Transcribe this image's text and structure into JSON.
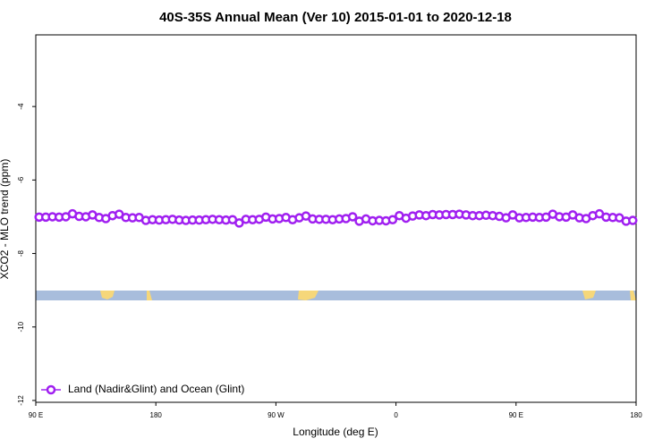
{
  "chart_data": {
    "type": "line",
    "title": "40S-35S Annual Mean (Ver 10)   2015-01-01 to 2020-12-18",
    "x_label": "Longitude (deg E)",
    "y_label": "XCO2 - MLO trend (ppm)",
    "x": [
      92.5,
      97.5,
      102.5,
      107.5,
      112.5,
      117.5,
      122.5,
      127.5,
      132.5,
      137.5,
      142.5,
      147.5,
      152.5,
      157.5,
      162.5,
      167.5,
      172.5,
      177.5,
      182.5,
      187.5,
      192.5,
      197.5,
      202.5,
      207.5,
      212.5,
      217.5,
      222.5,
      227.5,
      232.5,
      237.5,
      242.5,
      247.5,
      252.5,
      257.5,
      262.5,
      267.5,
      272.5,
      277.5,
      282.5,
      287.5,
      292.5,
      297.5,
      302.5,
      307.5,
      312.5,
      317.5,
      322.5,
      327.5,
      332.5,
      337.5,
      342.5,
      347.5,
      352.5,
      357.5,
      362.5,
      367.5,
      372.5,
      377.5,
      382.5,
      387.5,
      392.5,
      397.5,
      402.5,
      407.5,
      412.5,
      417.5,
      422.5,
      427.5,
      432.5,
      437.5,
      442.5,
      447.5,
      452.5,
      457.5,
      462.5,
      467.5,
      472.5,
      477.5,
      482.5,
      487.5,
      492.5,
      497.5,
      502.5,
      507.5,
      512.5,
      517.5,
      522.5,
      527.5,
      532.5,
      537.5
    ],
    "series": [
      {
        "name": "Land (Nadir&Glint) and Ocean (Glint)",
        "color": "#a020f0",
        "values": [
          -7.01,
          -7.01,
          -7.0,
          -7.01,
          -7.0,
          -6.92,
          -6.99,
          -7.0,
          -6.95,
          -7.02,
          -7.05,
          -6.97,
          -6.93,
          -7.02,
          -7.03,
          -7.02,
          -7.1,
          -7.08,
          -7.09,
          -7.08,
          -7.07,
          -7.09,
          -7.1,
          -7.09,
          -7.09,
          -7.08,
          -7.07,
          -7.08,
          -7.09,
          -7.08,
          -7.17,
          -7.07,
          -7.08,
          -7.07,
          -7.01,
          -7.06,
          -7.05,
          -7.02,
          -7.08,
          -7.03,
          -6.98,
          -7.06,
          -7.07,
          -7.07,
          -7.08,
          -7.06,
          -7.05,
          -7.0,
          -7.12,
          -7.06,
          -7.11,
          -7.1,
          -7.11,
          -7.08,
          -6.97,
          -7.04,
          -6.98,
          -6.95,
          -6.97,
          -6.94,
          -6.95,
          -6.94,
          -6.94,
          -6.93,
          -6.95,
          -6.97,
          -6.97,
          -6.96,
          -6.97,
          -6.99,
          -7.03,
          -6.95,
          -7.03,
          -7.02,
          -7.01,
          -7.02,
          -7.01,
          -6.93,
          -7.0,
          -7.01,
          -6.95,
          -7.03,
          -7.05,
          -6.97,
          -6.92,
          -7.01,
          -7.02,
          -7.03,
          -7.12,
          -7.1
        ]
      }
    ],
    "xlim": [
      90,
      540
    ],
    "xticks": [
      {
        "value": 90,
        "label": "90 E"
      },
      180,
      {
        "value": 270,
        "label": "90 W"
      },
      {
        "value": 360,
        "label": "0"
      },
      {
        "value": 450,
        "label": "90 E"
      },
      {
        "value": 540,
        "label": "180"
      }
    ],
    "ylim": [
      -12.05,
      -2.05
    ],
    "yticks": [
      -4,
      -6,
      -8,
      -10,
      -12
    ],
    "legend": "lower left",
    "grid": false
  }
}
